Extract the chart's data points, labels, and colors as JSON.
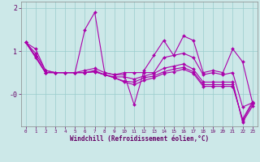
{
  "xlabel": "Windchill (Refroidissement éolien,°C)",
  "background_color": "#cce8e8",
  "line_color": "#aa00aa",
  "grid_color": "#99cccc",
  "x": [
    0,
    1,
    2,
    3,
    4,
    5,
    6,
    7,
    8,
    9,
    10,
    11,
    12,
    13,
    14,
    15,
    16,
    17,
    18,
    19,
    20,
    21,
    22,
    23
  ],
  "lines": [
    [
      1.2,
      1.05,
      0.55,
      0.5,
      0.5,
      0.5,
      1.5,
      1.9,
      0.5,
      0.45,
      0.45,
      -0.25,
      0.55,
      0.9,
      1.25,
      0.9,
      1.35,
      1.25,
      0.5,
      0.55,
      0.5,
      1.05,
      0.75,
      -0.2
    ],
    [
      1.2,
      0.95,
      0.55,
      0.5,
      0.5,
      0.5,
      0.55,
      0.6,
      0.5,
      0.45,
      0.5,
      0.5,
      0.5,
      0.5,
      0.85,
      0.9,
      0.95,
      0.85,
      0.45,
      0.5,
      0.45,
      0.5,
      -0.3,
      -0.2
    ],
    [
      1.2,
      0.85,
      0.5,
      0.5,
      0.5,
      0.5,
      0.5,
      0.55,
      0.45,
      0.4,
      0.4,
      0.35,
      0.42,
      0.48,
      0.6,
      0.65,
      0.7,
      0.58,
      0.28,
      0.28,
      0.28,
      0.28,
      -0.65,
      -0.28
    ],
    [
      1.2,
      0.88,
      0.5,
      0.5,
      0.5,
      0.5,
      0.5,
      0.52,
      0.45,
      0.38,
      0.3,
      0.28,
      0.38,
      0.42,
      0.52,
      0.58,
      0.62,
      0.52,
      0.22,
      0.22,
      0.22,
      0.22,
      -0.62,
      -0.22
    ],
    [
      1.2,
      0.88,
      0.5,
      0.5,
      0.5,
      0.5,
      0.5,
      0.52,
      0.45,
      0.38,
      0.28,
      0.22,
      0.32,
      0.38,
      0.48,
      0.52,
      0.58,
      0.48,
      0.18,
      0.18,
      0.18,
      0.18,
      -0.58,
      -0.18
    ]
  ],
  "ylim": [
    -0.75,
    2.15
  ],
  "yticks": [
    2,
    1,
    0
  ],
  "ytick_labels": [
    "2",
    "1",
    "-0"
  ],
  "xlim": [
    -0.5,
    23.5
  ],
  "xticks": [
    0,
    1,
    2,
    3,
    4,
    5,
    6,
    7,
    8,
    9,
    10,
    11,
    12,
    13,
    14,
    15,
    16,
    17,
    18,
    19,
    20,
    21,
    22,
    23
  ]
}
